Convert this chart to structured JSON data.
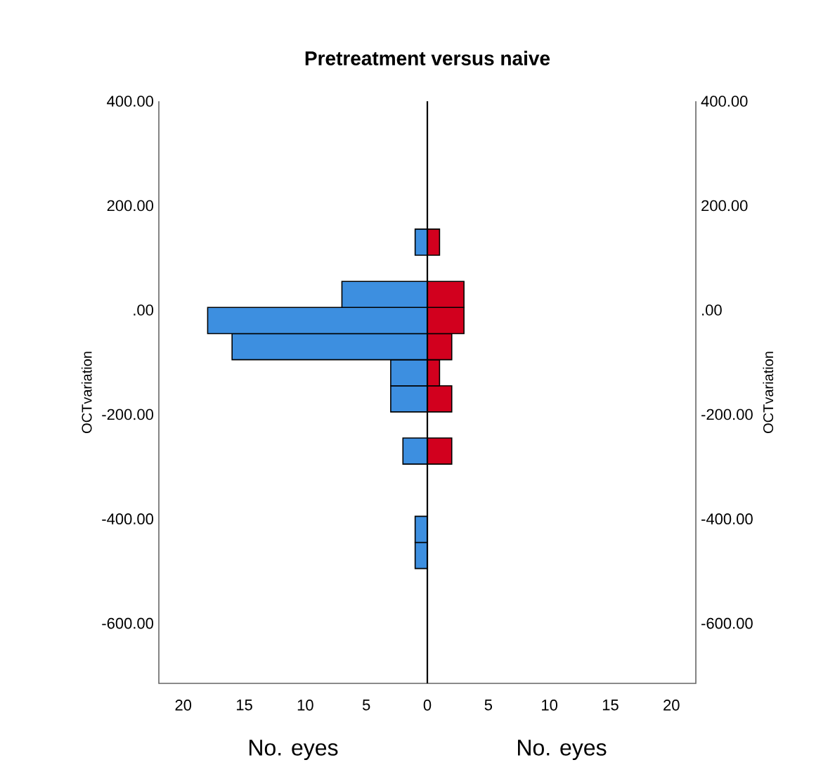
{
  "chart_data": [
    {
      "type": "histogram",
      "orientation": "horizontal",
      "title": "Pretreatment versus naive",
      "xlabel": "No. eyes",
      "ylabel": "OCTvariation",
      "bins": [
        -495,
        -445,
        -395,
        -345,
        -295,
        -245,
        -195,
        -145,
        -95,
        -45,
        5,
        55,
        105,
        155
      ],
      "values": [
        1,
        1,
        0,
        0,
        2,
        0,
        3,
        3,
        16,
        18,
        7,
        0,
        1
      ],
      "color": "#3d8fe0",
      "xlim": [
        22,
        0
      ],
      "xticks": [
        20,
        15,
        10,
        5,
        0
      ],
      "ylim": [
        -715,
        400
      ],
      "yticks": [
        {
          "value": 400,
          "label": "400.00"
        },
        {
          "value": 200,
          "label": "200.00"
        },
        {
          "value": 0,
          "label": ".00"
        },
        {
          "value": -200,
          "label": "-200.00"
        },
        {
          "value": -400,
          "label": "-400.00"
        },
        {
          "value": -600,
          "label": "-600.00"
        }
      ]
    },
    {
      "type": "histogram",
      "orientation": "horizontal",
      "xlabel": "No. eyes",
      "ylabel": "OCTvariation",
      "bins": [
        -495,
        -445,
        -395,
        -345,
        -295,
        -245,
        -195,
        -145,
        -95,
        -45,
        5,
        55,
        105,
        155
      ],
      "values": [
        0,
        0,
        0,
        0,
        2,
        0,
        2,
        1,
        2,
        3,
        3,
        0,
        1
      ],
      "color": "#d2001e",
      "xlim": [
        0,
        22
      ],
      "xticks": [
        {
          "value": 0,
          "label": null
        },
        5,
        10,
        15,
        20
      ],
      "ylim": [
        -715,
        400
      ],
      "yticks": [
        {
          "value": 400,
          "label": "400.00"
        },
        {
          "value": 200,
          "label": "200.00"
        },
        {
          "value": 0,
          "label": ".00"
        },
        {
          "value": -200,
          "label": "-200.00"
        },
        {
          "value": -400,
          "label": "-400.00"
        },
        {
          "value": -600,
          "label": "-600.00"
        }
      ]
    }
  ]
}
